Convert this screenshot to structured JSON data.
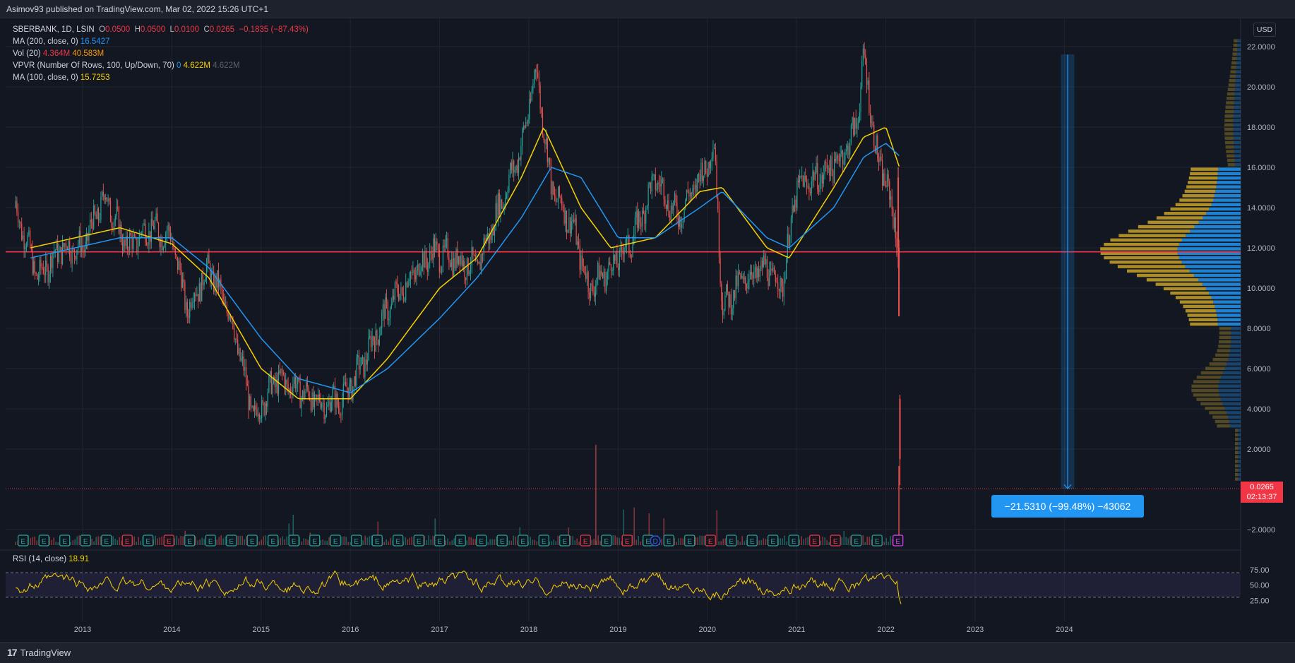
{
  "header": {
    "publish_line": "Asimov93 published on TradingView.com, Mar 02, 2022 15:26 UTC+1"
  },
  "legend": {
    "symbol": "SBERBANK, 1D, LSIN",
    "o_label": "O",
    "o_value": "0.0500",
    "h_label": "H",
    "h_value": "0.0500",
    "l_label": "L",
    "l_value": "0.0100",
    "c_label": "C",
    "c_value": "0.0265",
    "change": "−0.1835 (−87.43%)",
    "ma200_label": "MA (200, close, 0)",
    "ma200_value": "16.5427",
    "vol_label": "Vol (20)",
    "vol_value1": "4.364M",
    "vol_value2": "40.583M",
    "vpvr_label": "VPVR (Number Of Rows, 100, Up/Down, 70)",
    "vpvr_v1": "0",
    "vpvr_v2": "4.622M",
    "vpvr_v3": "4.622M",
    "ma100_label": "MA (100, close, 0)",
    "ma100_value": "15.7253"
  },
  "rsi": {
    "label": "RSI (14, close)",
    "value": "18.91",
    "ticks": [
      "75.00",
      "50.00",
      "25.00"
    ]
  },
  "price_axis": {
    "currency": "USD",
    "ticks": [
      "22.0000",
      "20.0000",
      "18.0000",
      "16.0000",
      "14.0000",
      "12.0000",
      "10.0000",
      "8.0000",
      "6.0000",
      "4.0000",
      "2.0000",
      "−2.0000"
    ]
  },
  "last_price": {
    "value": "0.0265",
    "countdown": "02:13:37"
  },
  "measure": {
    "text": "−21.5310 (−99.48%) −43062"
  },
  "time_axis": {
    "labels": [
      "2013",
      "2014",
      "2015",
      "2016",
      "2017",
      "2018",
      "2019",
      "2020",
      "2021",
      "2022",
      "2023",
      "2024"
    ]
  },
  "earnings_markers": [
    "E",
    "E",
    "E",
    "E",
    "E",
    "E",
    "E",
    "E",
    "E",
    "E",
    "E",
    "E",
    "E",
    "E",
    "E",
    "E",
    "E",
    "E",
    "E",
    "E",
    "E",
    "E",
    "E",
    "E",
    "E",
    "E",
    "E",
    "E",
    "E",
    "E",
    "E",
    "E",
    "E",
    "E",
    "E",
    "E",
    "E",
    "E",
    "E",
    "E",
    "E",
    "E",
    "E"
  ],
  "dividend_marker": "D",
  "footer": {
    "brand": "TradingView",
    "logo_text": "17"
  },
  "colors": {
    "background": "#131722",
    "up": "#26a69a",
    "down": "#ef5350",
    "ma100": "#f7d000",
    "ma200": "#2196f3",
    "support_line": "#f23645",
    "rsi": "#f7d000",
    "vpvr_up": "#2196f3",
    "vpvr_down": "#c9a227"
  },
  "chart_data": {
    "type": "line",
    "title": "SBERBANK, 1D, LSIN",
    "xlabel": "",
    "ylabel": "",
    "x_range": [
      "2012-04",
      "2024-09"
    ],
    "ylim": [
      -2.5,
      22.5
    ],
    "scale": "linear",
    "grid": true,
    "horizontal_line": 11.8,
    "series": [
      {
        "name": "",
        "kind": "price_close_approx",
        "x": [
          "2012-04",
          "2012-07",
          "2012-10",
          "2013-01",
          "2013-04",
          "2013-07",
          "2013-10",
          "2014-01",
          "2014-03",
          "2014-06",
          "2014-09",
          "2014-12",
          "2015-03",
          "2015-06",
          "2015-09",
          "2015-12",
          "2016-03",
          "2016-06",
          "2016-09",
          "2016-12",
          "2017-03",
          "2017-06",
          "2017-09",
          "2017-12",
          "2018-02",
          "2018-04",
          "2018-07",
          "2018-09",
          "2018-12",
          "2019-03",
          "2019-06",
          "2019-09",
          "2019-12",
          "2020-02",
          "2020-03",
          "2020-06",
          "2020-09",
          "2020-11",
          "2021-01",
          "2021-04",
          "2021-07",
          "2021-09",
          "2021-10",
          "2021-12",
          "2022-01",
          "2022-02-21",
          "2022-02-24",
          "2022-02-28",
          "2022-03-02"
        ],
        "values": [
          14.0,
          10.5,
          12.0,
          12.0,
          14.6,
          12.0,
          13.0,
          12.5,
          9.0,
          11.0,
          8.5,
          3.5,
          5.5,
          5.0,
          4.2,
          4.5,
          6.5,
          9.0,
          10.5,
          11.8,
          11.5,
          11.0,
          14.0,
          17.0,
          21.0,
          15.0,
          13.0,
          10.0,
          11.0,
          12.5,
          15.5,
          13.5,
          15.5,
          17.0,
          9.0,
          10.5,
          11.0,
          10.0,
          15.0,
          15.5,
          16.5,
          18.0,
          21.5,
          16.0,
          15.5,
          12.0,
          8.5,
          4.0,
          0.0265
        ]
      },
      {
        "name": "",
        "kind": "ma100",
        "x": [
          "2012-06",
          "2013-06",
          "2014-01",
          "2014-06",
          "2015-01",
          "2015-06",
          "2016-01",
          "2016-06",
          "2017-01",
          "2017-06",
          "2017-12",
          "2018-03",
          "2018-08",
          "2018-12",
          "2019-06",
          "2019-12",
          "2020-03",
          "2020-09",
          "2020-12",
          "2021-06",
          "2021-10",
          "2022-01",
          "2022-03"
        ],
        "values": [
          12.0,
          13.0,
          12.2,
          10.5,
          6.0,
          4.5,
          4.5,
          6.5,
          10.0,
          11.5,
          15.5,
          18.0,
          14.0,
          12.0,
          12.5,
          14.8,
          15.0,
          12.0,
          11.5,
          15.0,
          17.5,
          18.0,
          15.8
        ]
      },
      {
        "name": "",
        "kind": "ma200",
        "x": [
          "2012-06",
          "2013-06",
          "2014-01",
          "2014-06",
          "2015-01",
          "2015-06",
          "2016-01",
          "2016-06",
          "2017-01",
          "2017-06",
          "2017-12",
          "2018-04",
          "2018-08",
          "2019-01",
          "2019-06",
          "2019-12",
          "2020-03",
          "2020-09",
          "2020-12",
          "2021-06",
          "2021-10",
          "2022-01",
          "2022-03"
        ],
        "values": [
          11.5,
          12.5,
          12.5,
          11.0,
          7.5,
          5.5,
          4.8,
          6.0,
          8.5,
          10.5,
          13.5,
          16.0,
          15.5,
          12.5,
          12.5,
          14.0,
          14.8,
          12.5,
          12.0,
          14.0,
          16.5,
          17.2,
          16.5
        ]
      }
    ],
    "rsi": {
      "ylim": [
        0,
        100
      ],
      "overbought": 70,
      "oversold": 30,
      "last": 18.91
    }
  }
}
